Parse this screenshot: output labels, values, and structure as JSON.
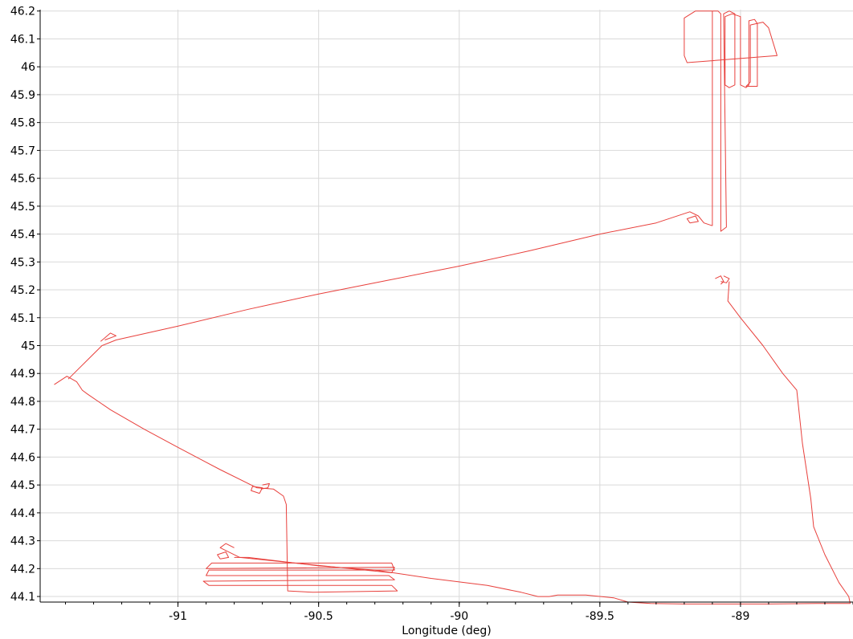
{
  "chart_data": {
    "type": "line",
    "title": "",
    "xlabel": "Longitude (deg)",
    "ylabel": "",
    "xlim": [
      -91.49,
      -88.6
    ],
    "ylim": [
      44.08,
      46.205
    ],
    "grid": true,
    "x_ticks": [
      -91,
      -90.5,
      -90,
      -89.5,
      -89
    ],
    "x_tick_labels": [
      "-91",
      "-90.5",
      "-90",
      "-89.5",
      "-89"
    ],
    "y_ticks": [
      44.1,
      44.2,
      44.3,
      44.4,
      44.5,
      44.6,
      44.7,
      44.8,
      44.9,
      45,
      45.1,
      45.2,
      45.3,
      45.4,
      45.5,
      45.6,
      45.7,
      45.8,
      45.9,
      46,
      46.1,
      46.2
    ],
    "y_tick_labels": [
      "44.1",
      "44.2",
      "44.3",
      "44.4",
      "44.5",
      "44.6",
      "44.7",
      "44.8",
      "44.9",
      "45",
      "45.1",
      "45.2",
      "45.3",
      "45.4",
      "45.5",
      "45.6",
      "45.7",
      "45.8",
      "45.9",
      "46",
      "46.1",
      "46.2"
    ],
    "series": [
      {
        "color": "#e8403c",
        "segments": [
          [
            [
              -91.44,
              44.86
            ],
            [
              -91.395,
              44.89
            ],
            [
              -91.36,
              44.87
            ],
            [
              -91.34,
              44.84
            ],
            [
              -91.32,
              44.825
            ],
            [
              -91.24,
              44.77
            ],
            [
              -91.12,
              44.7
            ],
            [
              -91.0,
              44.635
            ],
            [
              -90.85,
              44.555
            ],
            [
              -90.72,
              44.49
            ],
            [
              -90.66,
              44.485
            ],
            [
              -90.625,
              44.46
            ],
            [
              -90.615,
              44.43
            ],
            [
              -90.61,
              44.12
            ],
            [
              -90.52,
              44.115
            ],
            [
              -90.22,
              44.12
            ],
            [
              -90.24,
              44.14
            ],
            [
              -90.89,
              44.14
            ],
            [
              -90.91,
              44.155
            ],
            [
              -90.23,
              44.16
            ],
            [
              -90.25,
              44.175
            ],
            [
              -90.9,
              44.175
            ],
            [
              -90.89,
              44.195
            ],
            [
              -90.23,
              44.195
            ],
            [
              -90.24,
              44.22
            ],
            [
              -90.88,
              44.22
            ],
            [
              -90.9,
              44.2
            ],
            [
              -90.23,
              44.205
            ],
            [
              -90.24,
              44.185
            ],
            [
              -90.78,
              44.24
            ],
            [
              -90.85,
              44.275
            ],
            [
              -90.83,
              44.29
            ],
            [
              -90.8,
              44.275
            ]
          ],
          [
            [
              -90.85,
              44.235
            ],
            [
              -90.82,
              44.24
            ],
            [
              -90.83,
              44.26
            ],
            [
              -90.86,
              44.25
            ],
            [
              -90.85,
              44.235
            ]
          ],
          [
            [
              -90.71,
              44.47
            ],
            [
              -90.74,
              44.48
            ],
            [
              -90.735,
              44.495
            ],
            [
              -90.7,
              44.49
            ],
            [
              -90.71,
              44.47
            ]
          ],
          [
            [
              -90.7,
              44.5
            ],
            [
              -90.675,
              44.505
            ],
            [
              -90.68,
              44.49
            ],
            [
              -90.705,
              44.485
            ]
          ],
          [
            [
              -91.39,
              44.88
            ],
            [
              -91.3,
              44.97
            ],
            [
              -91.27,
              45.0
            ],
            [
              -91.22,
              45.02
            ],
            [
              -91.0,
              45.07
            ],
            [
              -90.75,
              45.13
            ],
            [
              -90.5,
              45.185
            ],
            [
              -90.25,
              45.235
            ],
            [
              -90.0,
              45.285
            ],
            [
              -89.75,
              45.34
            ],
            [
              -89.5,
              45.4
            ],
            [
              -89.3,
              45.44
            ],
            [
              -89.18,
              45.48
            ],
            [
              -89.15,
              45.465
            ],
            [
              -89.13,
              45.44
            ],
            [
              -89.1,
              45.43
            ]
          ],
          [
            [
              -89.18,
              45.44
            ],
            [
              -89.15,
              45.445
            ],
            [
              -89.16,
              45.465
            ],
            [
              -89.19,
              45.455
            ],
            [
              -89.18,
              45.44
            ]
          ],
          [
            [
              -91.26,
              45.02
            ],
            [
              -91.22,
              45.035
            ],
            [
              -91.24,
              45.045
            ],
            [
              -91.275,
              45.015
            ]
          ],
          [
            [
              -89.1,
              45.43
            ],
            [
              -89.1,
              46.2
            ],
            [
              -89.08,
              46.2
            ],
            [
              -89.07,
              46.19
            ],
            [
              -89.07,
              45.41
            ],
            [
              -89.05,
              45.425
            ],
            [
              -89.06,
              46.19
            ],
            [
              -89.04,
              46.2
            ],
            [
              -89.02,
              46.19
            ],
            [
              -89.02,
              45.935
            ],
            [
              -89.04,
              45.925
            ],
            [
              -89.055,
              45.935
            ],
            [
              -89.055,
              46.18
            ],
            [
              -89.03,
              46.19
            ],
            [
              -89.0,
              46.18
            ],
            [
              -89.0,
              45.935
            ],
            [
              -88.98,
              45.925
            ],
            [
              -88.97,
              45.935
            ],
            [
              -88.97,
              46.165
            ],
            [
              -88.95,
              46.17
            ],
            [
              -88.94,
              46.155
            ],
            [
              -88.94,
              45.93
            ],
            [
              -88.98,
              45.93
            ],
            [
              -88.965,
              45.945
            ],
            [
              -88.965,
              46.15
            ],
            [
              -88.92,
              46.16
            ],
            [
              -88.9,
              46.14
            ],
            [
              -88.87,
              46.04
            ],
            [
              -89.19,
              46.015
            ],
            [
              -89.2,
              46.04
            ],
            [
              -89.2,
              46.175
            ],
            [
              -89.16,
              46.2
            ],
            [
              -89.1,
              46.2
            ]
          ],
          [
            [
              -89.07,
              45.22
            ],
            [
              -89.06,
              45.23
            ],
            [
              -89.07,
              45.25
            ],
            [
              -89.09,
              45.24
            ]
          ],
          [
            [
              -89.07,
              45.23
            ],
            [
              -89.05,
              45.225
            ],
            [
              -89.04,
              45.24
            ],
            [
              -89.06,
              45.25
            ]
          ],
          [
            [
              -89.04,
              45.23
            ],
            [
              -89.045,
              45.16
            ],
            [
              -89.0,
              45.1
            ],
            [
              -88.92,
              45.0
            ],
            [
              -88.85,
              44.9
            ],
            [
              -88.8,
              44.84
            ],
            [
              -88.78,
              44.65
            ],
            [
              -88.75,
              44.45
            ],
            [
              -88.74,
              44.35
            ],
            [
              -88.7,
              44.25
            ],
            [
              -88.65,
              44.15
            ],
            [
              -88.615,
              44.1
            ],
            [
              -88.61,
              44.075
            ],
            [
              -88.7,
              44.075
            ],
            [
              -88.9,
              44.073
            ],
            [
              -89.1,
              44.073
            ],
            [
              -89.2,
              44.073
            ],
            [
              -89.32,
              44.075
            ],
            [
              -89.4,
              44.08
            ],
            [
              -89.45,
              44.095
            ],
            [
              -89.55,
              44.105
            ],
            [
              -89.65,
              44.105
            ],
            [
              -89.68,
              44.1
            ],
            [
              -89.72,
              44.1
            ],
            [
              -89.78,
              44.115
            ],
            [
              -89.9,
              44.14
            ],
            [
              -90.1,
              44.165
            ],
            [
              -90.3,
              44.195
            ],
            [
              -90.5,
              44.21
            ],
            [
              -90.75,
              44.24
            ],
            [
              -90.8,
              44.24
            ]
          ]
        ]
      }
    ]
  }
}
